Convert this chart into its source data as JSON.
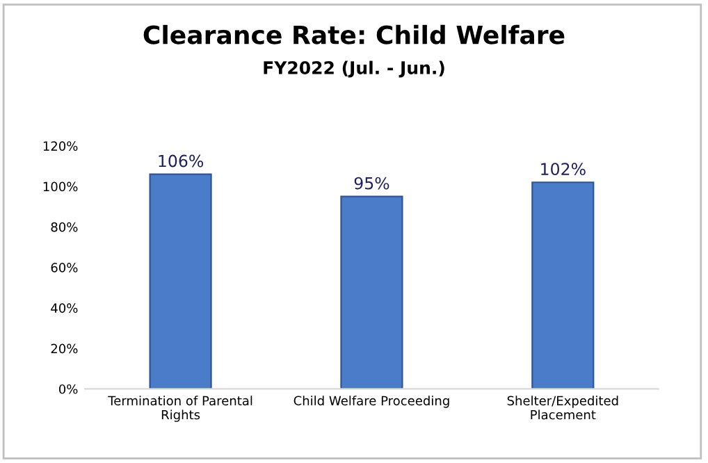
{
  "chart_data": {
    "type": "bar",
    "title": "Clearance Rate: Child Welfare",
    "subtitle": "FY2022 (Jul. - Jun.)",
    "categories": [
      "Termination of Parental\nRights",
      "Child Welfare Proceeding",
      "Shelter/Expedited\nPlacement"
    ],
    "values": [
      106,
      95,
      102
    ],
    "value_labels": [
      "106%",
      "95%",
      "102%"
    ],
    "color": "#4a7cc9",
    "ylim": [
      0,
      120
    ],
    "yticks": [
      {
        "value": 0,
        "label": "0%"
      },
      {
        "value": 20,
        "label": "20%"
      },
      {
        "value": 40,
        "label": "40%"
      },
      {
        "value": 60,
        "label": "60%"
      },
      {
        "value": 80,
        "label": "80%"
      },
      {
        "value": 100,
        "label": "100%"
      },
      {
        "value": 120,
        "label": "120%"
      }
    ],
    "grid": false,
    "legend": false
  }
}
